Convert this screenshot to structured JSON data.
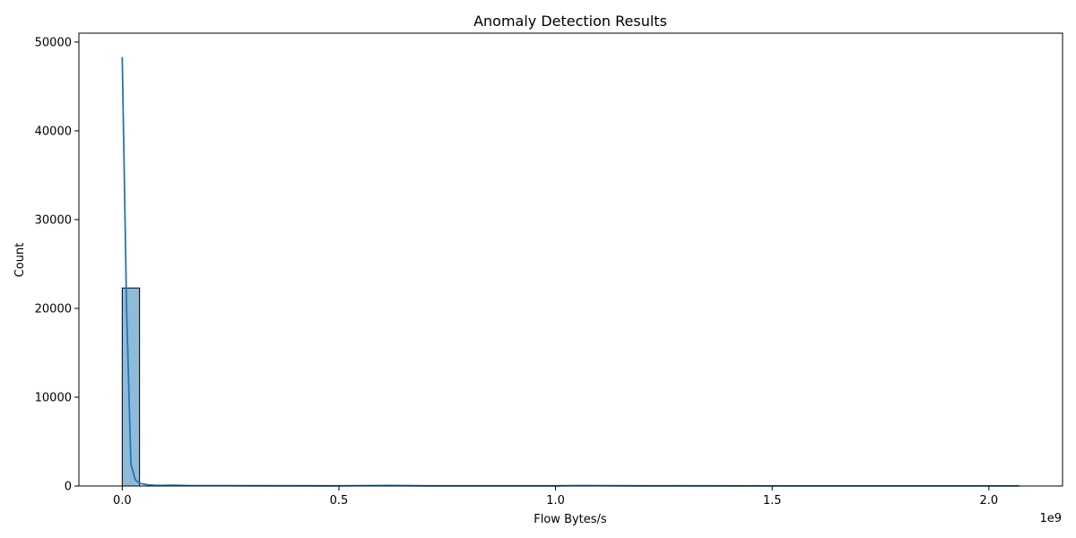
{
  "chart_data": {
    "type": "bar",
    "subtype": "histogram-with-kde",
    "title": "Anomaly Detection Results",
    "xlabel": "Flow Bytes/s",
    "ylabel": "Count",
    "x_offset_label": "1e9",
    "xlim": [
      -0.1,
      2.17
    ],
    "ylim": [
      0,
      51000
    ],
    "x_unit_multiplier": 1000000000.0,
    "x_ticks": [
      0.0,
      0.5,
      1.0,
      1.5,
      2.0
    ],
    "x_tick_labels": [
      "0.0",
      "0.5",
      "1.0",
      "1.5",
      "2.0"
    ],
    "y_ticks": [
      0,
      10000,
      20000,
      30000,
      40000,
      50000
    ],
    "y_tick_labels": [
      "0",
      "10000",
      "20000",
      "30000",
      "40000",
      "50000"
    ],
    "grid": false,
    "bars": [
      {
        "x0": 0.0,
        "x1": 0.04,
        "count": 22300
      }
    ],
    "bar_color": "#1f77b4",
    "line_color": "#1f77b4",
    "kde_series": {
      "x": [
        0.0,
        0.01,
        0.02,
        0.03,
        0.04,
        0.06,
        0.08,
        0.12,
        0.16,
        0.3,
        0.5,
        0.62,
        0.7,
        1.0,
        1.05,
        1.2,
        1.5,
        2.0,
        2.07
      ],
      "y": [
        48300,
        20000,
        2500,
        700,
        300,
        120,
        60,
        90,
        40,
        30,
        20,
        60,
        20,
        20,
        50,
        20,
        15,
        12,
        12
      ]
    }
  }
}
